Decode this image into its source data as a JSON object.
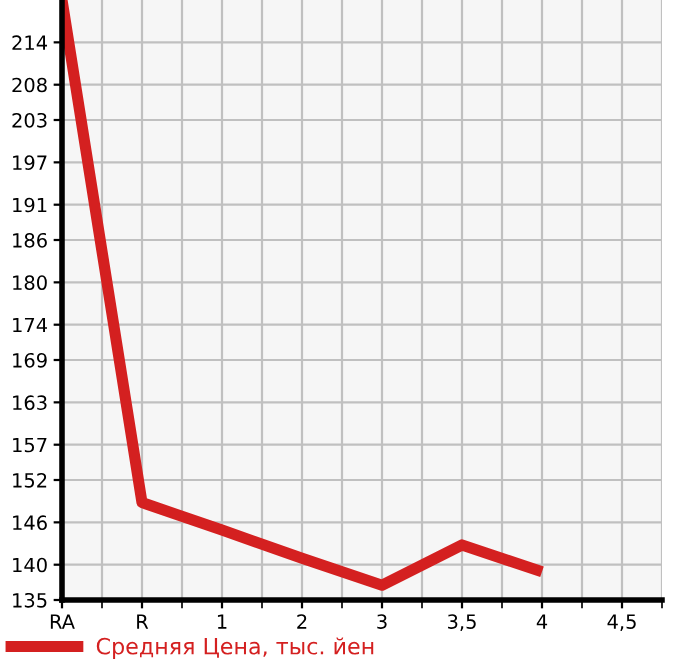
{
  "chart_data": {
    "type": "line",
    "categories": [
      "RA",
      "R",
      "1",
      "2",
      "3",
      "3,5",
      "4",
      "4,5"
    ],
    "series": [
      {
        "name": "Средняя Цена, тыс. йен",
        "color": "#d42020",
        "values": [
          220,
          148.8,
          144.9,
          140.9,
          137.1,
          142.8,
          139.0,
          null
        ]
      }
    ],
    "ylim": [
      135,
      220
    ],
    "yticks": [
      135,
      140,
      146,
      152,
      157,
      163,
      169,
      174,
      180,
      186,
      191,
      197,
      203,
      208,
      214
    ],
    "grid": true,
    "legend": "bottom",
    "marker": "none",
    "line_style": "solid"
  }
}
